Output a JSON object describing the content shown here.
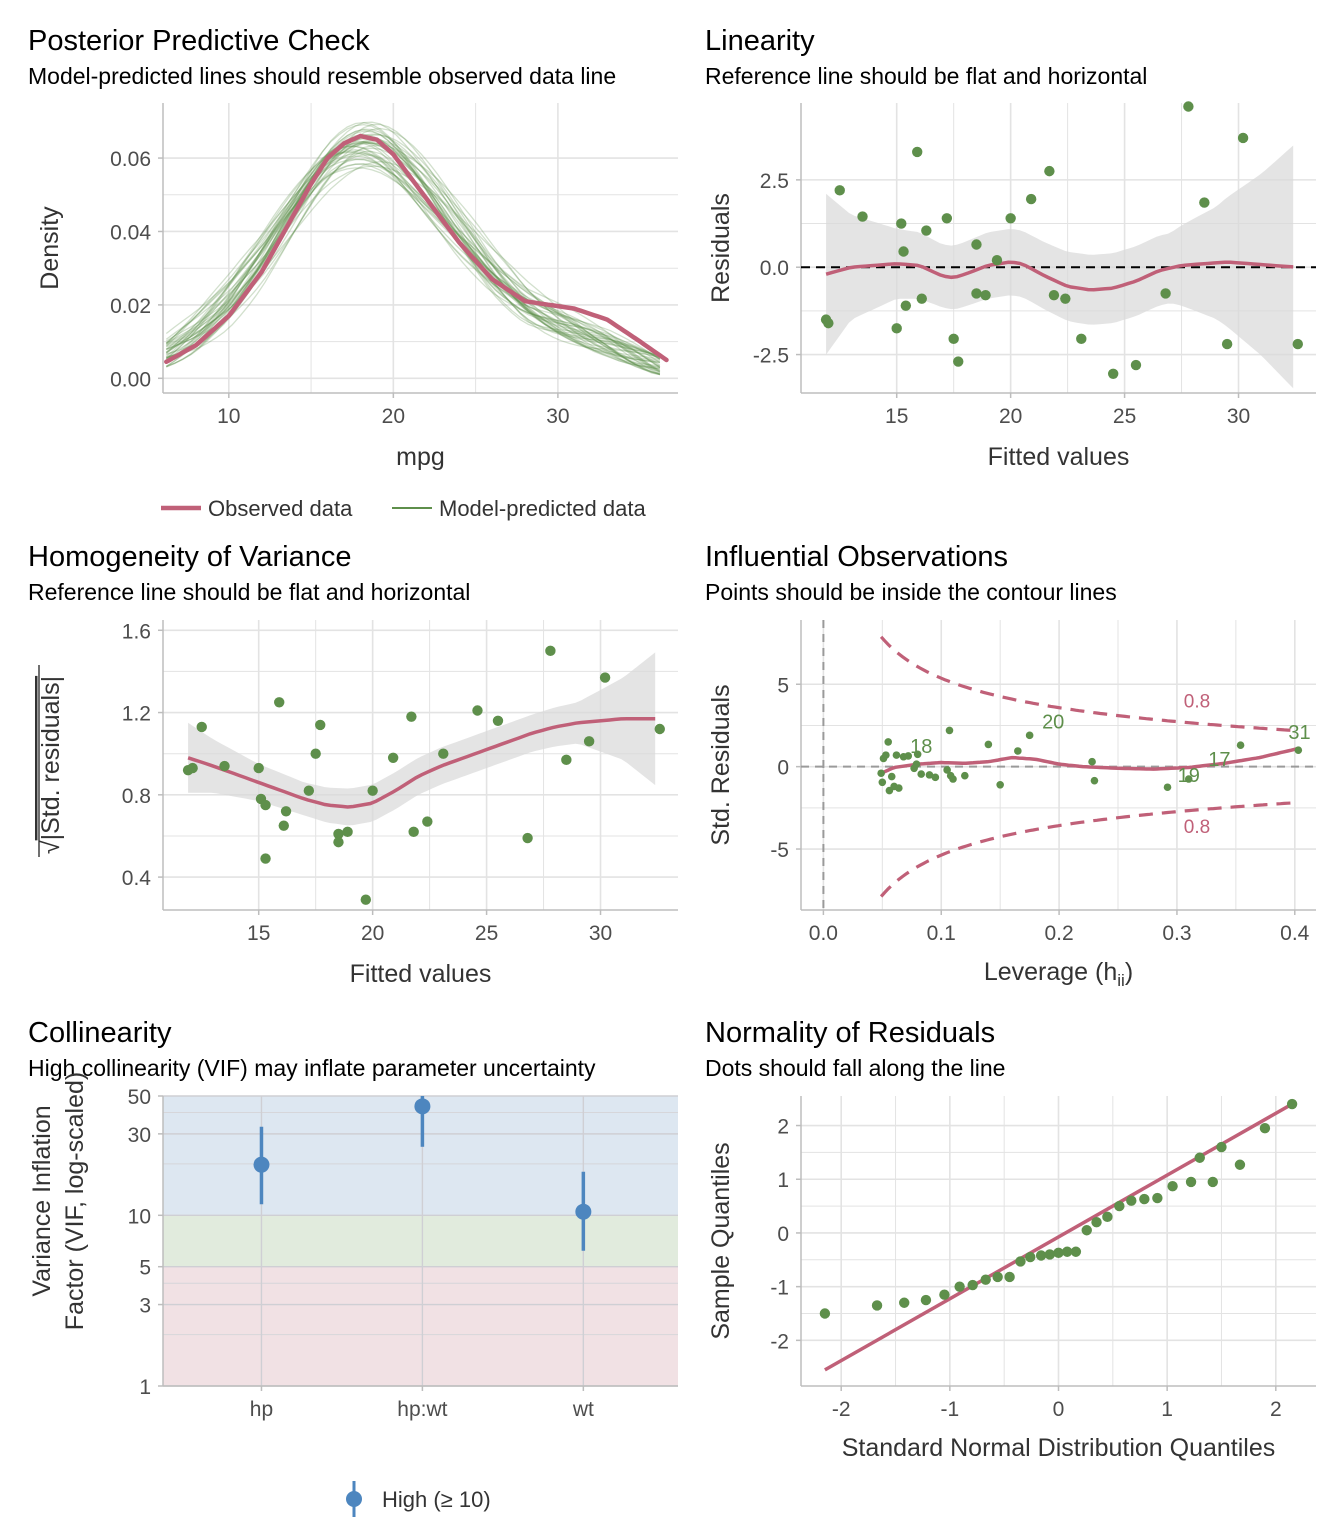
{
  "colors": {
    "observed": "#c06078",
    "predicted": "#5e8f4b",
    "points": "#5e8f4b",
    "ribbon": "#d9d9d9",
    "grid": "#e3e3e3",
    "axis": "#bdbdbd",
    "vif_point": "#4d86bf",
    "zone_high": "#dde7f1",
    "zone_moderate": "#e1ebdd",
    "zone_low": "#f1e1e4"
  },
  "chart_data": [
    {
      "id": "ppc",
      "type": "line",
      "title": "Posterior Predictive Check",
      "subtitle": "Model-predicted lines should resemble observed data line",
      "xlabel": "mpg",
      "ylabel": "Density",
      "xlim": [
        6.0,
        37.3
      ],
      "ylim": [
        -0.004,
        0.075
      ],
      "xticks": [
        10,
        20,
        30
      ],
      "yticks": [
        0.0,
        0.02,
        0.04,
        0.06
      ],
      "ytick_labels": [
        "0.00",
        "0.02",
        "0.04",
        "0.06"
      ],
      "grid": true,
      "legend": {
        "position": "bottom",
        "entries": [
          "Observed data",
          "Model-predicted data"
        ]
      },
      "series": [
        {
          "name": "Observed data",
          "x": [
            6.2,
            8,
            10,
            12,
            14,
            15,
            16,
            17,
            18,
            19,
            20,
            22,
            24,
            26,
            28,
            29.5,
            31,
            33,
            35,
            36.6
          ],
          "y": [
            0.0045,
            0.009,
            0.017,
            0.029,
            0.045,
            0.053,
            0.06,
            0.064,
            0.066,
            0.065,
            0.061,
            0.049,
            0.037,
            0.027,
            0.021,
            0.02,
            0.019,
            0.016,
            0.01,
            0.005
          ]
        },
        {
          "name": "Model-predicted data",
          "samples": 40
        }
      ]
    },
    {
      "id": "linearity",
      "type": "scatter",
      "title": "Linearity",
      "subtitle": "Reference line should be flat and horizontal",
      "xlabel": "Fitted values",
      "ylabel": "Residuals",
      "xlim": [
        10.8,
        33.4
      ],
      "ylim": [
        -3.6,
        4.7
      ],
      "xticks": [
        15,
        20,
        25,
        30
      ],
      "yticks": [
        -2.5,
        0.0,
        2.5
      ],
      "ytick_labels": [
        "-2.5",
        "0.0",
        "2.5"
      ],
      "grid": true,
      "points": [
        [
          11.9,
          -1.5
        ],
        [
          12.0,
          -1.6
        ],
        [
          12.5,
          2.2
        ],
        [
          13.5,
          1.45
        ],
        [
          15.0,
          -1.75
        ],
        [
          15.2,
          1.25
        ],
        [
          15.3,
          0.45
        ],
        [
          15.4,
          -1.1
        ],
        [
          15.9,
          3.3
        ],
        [
          16.1,
          -0.9
        ],
        [
          16.3,
          1.05
        ],
        [
          17.2,
          1.4
        ],
        [
          17.5,
          -2.05
        ],
        [
          17.7,
          -2.7
        ],
        [
          18.5,
          0.65
        ],
        [
          18.5,
          -0.75
        ],
        [
          18.9,
          -0.8
        ],
        [
          19.4,
          0.2
        ],
        [
          20.0,
          1.4
        ],
        [
          20.9,
          1.95
        ],
        [
          21.7,
          2.75
        ],
        [
          21.9,
          -0.8
        ],
        [
          22.4,
          -0.9
        ],
        [
          23.1,
          -2.05
        ],
        [
          24.5,
          -3.05
        ],
        [
          25.5,
          -2.8
        ],
        [
          26.8,
          -0.75
        ],
        [
          27.8,
          4.6
        ],
        [
          28.5,
          1.85
        ],
        [
          29.5,
          -2.2
        ],
        [
          30.2,
          3.7
        ],
        [
          32.6,
          -2.2
        ]
      ],
      "smooth": [
        [
          11.9,
          -0.2
        ],
        [
          13,
          0.0
        ],
        [
          14,
          0.05
        ],
        [
          15,
          0.1
        ],
        [
          16,
          0.05
        ],
        [
          17,
          -0.25
        ],
        [
          17.5,
          -0.3
        ],
        [
          18,
          -0.2
        ],
        [
          19,
          0.05
        ],
        [
          20,
          0.15
        ],
        [
          20.5,
          0.1
        ],
        [
          21.5,
          -0.25
        ],
        [
          22.5,
          -0.55
        ],
        [
          23.5,
          -0.65
        ],
        [
          24.5,
          -0.6
        ],
        [
          25.5,
          -0.4
        ],
        [
          26.5,
          -0.1
        ],
        [
          27.5,
          0.05
        ],
        [
          28.5,
          0.1
        ],
        [
          29.5,
          0.15
        ],
        [
          30.5,
          0.1
        ],
        [
          31.5,
          0.05
        ],
        [
          32.6,
          0.0
        ]
      ],
      "ribbon_half_width": [
        [
          11.9,
          2.3
        ],
        [
          13,
          1.5
        ],
        [
          15,
          1.0
        ],
        [
          17,
          0.9
        ],
        [
          19,
          0.95
        ],
        [
          21,
          0.95
        ],
        [
          23,
          1.0
        ],
        [
          25,
          1.0
        ],
        [
          27,
          1.0
        ],
        [
          29,
          1.6
        ],
        [
          31,
          2.6
        ],
        [
          32.6,
          3.6
        ]
      ],
      "reference_y": 0
    },
    {
      "id": "homogeneity",
      "type": "scatter",
      "title": "Homogeneity of Variance",
      "subtitle": "Reference line should be flat and horizontal",
      "xlabel": "Fitted values",
      "ylabel": "|Std. residuals|",
      "xlim": [
        10.8,
        33.4
      ],
      "ylim": [
        0.24,
        1.65
      ],
      "xticks": [
        15,
        20,
        25,
        30
      ],
      "yticks": [
        0.4,
        0.8,
        1.2,
        1.6
      ],
      "ytick_labels": [
        "0.4",
        "0.8",
        "1.2",
        "1.6"
      ],
      "grid": true,
      "points": [
        [
          11.9,
          0.92
        ],
        [
          12.1,
          0.93
        ],
        [
          12.5,
          1.13
        ],
        [
          13.5,
          0.94
        ],
        [
          15.0,
          0.93
        ],
        [
          15.1,
          0.78
        ],
        [
          15.3,
          0.75
        ],
        [
          15.3,
          0.49
        ],
        [
          15.9,
          1.25
        ],
        [
          16.1,
          0.65
        ],
        [
          16.2,
          0.72
        ],
        [
          17.2,
          0.82
        ],
        [
          17.5,
          1.0
        ],
        [
          17.7,
          1.14
        ],
        [
          18.5,
          0.61
        ],
        [
          18.5,
          0.57
        ],
        [
          18.9,
          0.62
        ],
        [
          19.7,
          0.29
        ],
        [
          20.0,
          0.82
        ],
        [
          20.9,
          0.98
        ],
        [
          21.7,
          1.18
        ],
        [
          21.8,
          0.62
        ],
        [
          22.4,
          0.67
        ],
        [
          23.1,
          1.0
        ],
        [
          24.6,
          1.21
        ],
        [
          25.5,
          1.16
        ],
        [
          26.8,
          0.59
        ],
        [
          27.8,
          1.5
        ],
        [
          28.5,
          0.97
        ],
        [
          29.5,
          1.06
        ],
        [
          30.2,
          1.37
        ],
        [
          32.6,
          1.12
        ]
      ],
      "smooth": [
        [
          11.9,
          0.98
        ],
        [
          13,
          0.94
        ],
        [
          14,
          0.9
        ],
        [
          15,
          0.86
        ],
        [
          16,
          0.82
        ],
        [
          17,
          0.78
        ],
        [
          18,
          0.75
        ],
        [
          19,
          0.74
        ],
        [
          20,
          0.76
        ],
        [
          21,
          0.82
        ],
        [
          22,
          0.89
        ],
        [
          23,
          0.94
        ],
        [
          24,
          0.98
        ],
        [
          25,
          1.02
        ],
        [
          26,
          1.06
        ],
        [
          27,
          1.1
        ],
        [
          28,
          1.13
        ],
        [
          29,
          1.15
        ],
        [
          30,
          1.16
        ],
        [
          31,
          1.17
        ],
        [
          32.6,
          1.17
        ]
      ],
      "ribbon_half_width": [
        [
          11.9,
          0.17
        ],
        [
          13,
          0.13
        ],
        [
          15,
          0.09
        ],
        [
          17,
          0.08
        ],
        [
          19,
          0.09
        ],
        [
          21,
          0.09
        ],
        [
          23,
          0.09
        ],
        [
          25,
          0.09
        ],
        [
          27,
          0.09
        ],
        [
          29,
          0.1
        ],
        [
          31,
          0.2
        ],
        [
          32.6,
          0.34
        ]
      ]
    },
    {
      "id": "influence",
      "type": "scatter",
      "title": "Influential Observations",
      "subtitle": "Points should be inside the contour lines",
      "xlabel": "Leverage (h",
      "xlabel_sub": "ii",
      "xlabel_close": ")",
      "ylabel": "Std. Residuals",
      "xlim": [
        -0.019,
        0.418
      ],
      "ylim": [
        -8.7,
        8.9
      ],
      "xticks": [
        0.0,
        0.1,
        0.2,
        0.3,
        0.4
      ],
      "xtick_labels": [
        "0.0",
        "0.1",
        "0.2",
        "0.3",
        "0.4"
      ],
      "yticks": [
        -5,
        0,
        5
      ],
      "ytick_labels": [
        "-5",
        "0",
        "5"
      ],
      "grid": true,
      "points": [
        [
          0.049,
          -0.4
        ],
        [
          0.05,
          -0.95
        ],
        [
          0.051,
          0.5
        ],
        [
          0.053,
          0.7
        ],
        [
          0.055,
          1.5
        ],
        [
          0.056,
          -1.45
        ],
        [
          0.058,
          -0.6
        ],
        [
          0.06,
          -1.2
        ],
        [
          0.062,
          0.7
        ],
        [
          0.064,
          -1.3
        ],
        [
          0.068,
          0.6
        ],
        [
          0.072,
          0.65
        ],
        [
          0.077,
          -0.1
        ],
        [
          0.079,
          0.15
        ],
        [
          0.08,
          0.75
        ],
        [
          0.083,
          -0.45
        ],
        [
          0.09,
          -0.5
        ],
        [
          0.095,
          -0.65
        ],
        [
          0.105,
          -0.2
        ],
        [
          0.107,
          2.2
        ],
        [
          0.108,
          -0.55
        ],
        [
          0.11,
          -0.75
        ],
        [
          0.12,
          -0.55
        ],
        [
          0.14,
          1.35
        ],
        [
          0.15,
          -1.1
        ],
        [
          0.165,
          0.95
        ],
        [
          0.175,
          1.9
        ],
        [
          0.228,
          0.3
        ],
        [
          0.23,
          -0.85
        ],
        [
          0.292,
          -1.25
        ],
        [
          0.31,
          -0.75
        ],
        [
          0.354,
          1.3
        ],
        [
          0.403,
          1.0
        ]
      ],
      "labels": [
        {
          "text": "18",
          "x": 0.083,
          "y": 1.25
        },
        {
          "text": "20",
          "x": 0.195,
          "y": 2.75
        },
        {
          "text": "17",
          "x": 0.336,
          "y": 0.45
        },
        {
          "text": "19",
          "x": 0.31,
          "y": -0.5
        },
        {
          "text": "31",
          "x": 0.404,
          "y": 2.1
        }
      ],
      "contour_label": "0.8",
      "contour_label_points": [
        [
          0.317,
          4.0
        ],
        [
          0.317,
          -3.6
        ]
      ],
      "smooth": [
        [
          0.049,
          -0.4
        ],
        [
          0.06,
          -0.05
        ],
        [
          0.08,
          0.15
        ],
        [
          0.1,
          0.25
        ],
        [
          0.12,
          0.2
        ],
        [
          0.14,
          0.3
        ],
        [
          0.16,
          0.55
        ],
        [
          0.18,
          0.45
        ],
        [
          0.2,
          0.15
        ],
        [
          0.22,
          0.0
        ],
        [
          0.25,
          -0.1
        ],
        [
          0.28,
          -0.15
        ],
        [
          0.31,
          -0.05
        ],
        [
          0.34,
          0.2
        ],
        [
          0.37,
          0.55
        ],
        [
          0.403,
          1.1
        ]
      ],
      "contour_level": 0.8,
      "contour_parameters": 4
    },
    {
      "id": "collinearity",
      "type": "scatter",
      "title": "Collinearity",
      "subtitle": "High collinearity (VIF) may inflate parameter uncertainty",
      "xlabel": "",
      "ylabel": "Variance Inflation Factor (VIF, log-scaled)",
      "ylabel_lines": [
        "Variance Inflation",
        "Factor (VIF, log-scaled)"
      ],
      "y_scale": "log",
      "ylim": [
        1,
        50
      ],
      "yticks": [
        1,
        3,
        5,
        10,
        30,
        50
      ],
      "categories": [
        "hp",
        "hp:wt",
        "wt"
      ],
      "grid": true,
      "zones": [
        {
          "from": 1,
          "to": 5,
          "color": "#f1e1e4"
        },
        {
          "from": 5,
          "to": 10,
          "color": "#e1ebdd"
        },
        {
          "from": 10,
          "to": 50,
          "color": "#dde7f1"
        }
      ],
      "points": [
        {
          "term": "hp",
          "vif": 19.8,
          "low": 11.6,
          "high": 33.0
        },
        {
          "term": "hp:wt",
          "vif": 43.5,
          "low": 25.2,
          "high": 50.0
        },
        {
          "term": "wt",
          "vif": 10.5,
          "low": 6.2,
          "high": 18.0
        }
      ],
      "legend": {
        "position": "bottom",
        "entries": [
          "High (≥ 10)"
        ]
      }
    },
    {
      "id": "normality",
      "type": "scatter",
      "title": "Normality of Residuals",
      "subtitle": "Dots should fall along the line",
      "xlabel": "Standard Normal Distribution Quantiles",
      "ylabel": "Sample Quantiles",
      "xlim": [
        -2.37,
        2.37
      ],
      "ylim": [
        -2.85,
        2.55
      ],
      "xticks": [
        -2,
        -1,
        0,
        1,
        2
      ],
      "xtick_labels": [
        "-2",
        "-1",
        "0",
        "1",
        "2"
      ],
      "yticks": [
        -2,
        -1,
        0,
        1,
        2
      ],
      "ytick_labels": [
        "-2",
        "-1",
        "0",
        "1",
        "2"
      ],
      "grid": true,
      "points": [
        [
          -2.15,
          -1.5
        ],
        [
          -1.67,
          -1.35
        ],
        [
          -1.42,
          -1.3
        ],
        [
          -1.22,
          -1.25
        ],
        [
          -1.05,
          -1.15
        ],
        [
          -0.91,
          -1.0
        ],
        [
          -0.79,
          -0.97
        ],
        [
          -0.67,
          -0.87
        ],
        [
          -0.56,
          -0.82
        ],
        [
          -0.45,
          -0.82
        ],
        [
          -0.35,
          -0.53
        ],
        [
          -0.26,
          -0.45
        ],
        [
          -0.16,
          -0.42
        ],
        [
          -0.08,
          -0.4
        ],
        [
          0.0,
          -0.37
        ],
        [
          0.08,
          -0.35
        ],
        [
          0.16,
          -0.35
        ],
        [
          0.26,
          0.05
        ],
        [
          0.35,
          0.2
        ],
        [
          0.45,
          0.3
        ],
        [
          0.56,
          0.5
        ],
        [
          0.67,
          0.6
        ],
        [
          0.79,
          0.63
        ],
        [
          0.91,
          0.65
        ],
        [
          1.05,
          0.87
        ],
        [
          1.22,
          0.95
        ],
        [
          1.42,
          0.95
        ],
        [
          1.67,
          1.27
        ],
        [
          2.15,
          2.4
        ],
        [
          1.3,
          1.4
        ],
        [
          1.5,
          1.6
        ],
        [
          1.9,
          1.95
        ]
      ],
      "reference_line": {
        "x": [
          -2.15,
          2.15
        ],
        "y": [
          -2.55,
          2.4
        ]
      }
    }
  ]
}
